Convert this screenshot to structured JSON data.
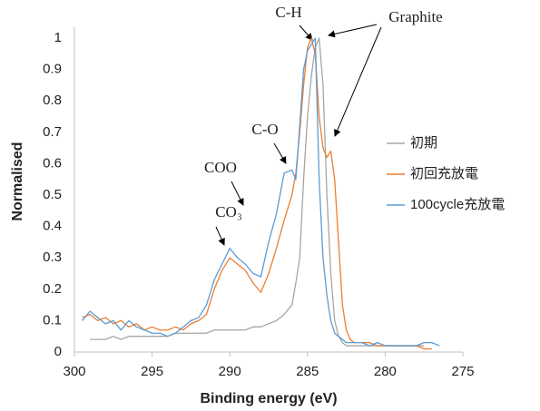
{
  "chart_data": {
    "type": "line",
    "x_label": "Binding energy (eV)",
    "y_label": "Normalised",
    "x": [
      299.5,
      299,
      298.5,
      298,
      297.5,
      297,
      296.5,
      296,
      295.5,
      295,
      294.5,
      294,
      293.5,
      293,
      292.5,
      292,
      291.5,
      291,
      290.5,
      290,
      289.5,
      289,
      288.5,
      288,
      287.5,
      287,
      286.5,
      286,
      285.75,
      285.5,
      285.25,
      285,
      284.75,
      284.5,
      284.25,
      284,
      283.75,
      283.5,
      283.25,
      283,
      282.75,
      282.5,
      282.25,
      282,
      281.5,
      281,
      280.5,
      280,
      279.5,
      279,
      278.5,
      278,
      277.5,
      277,
      276.5
    ],
    "series": [
      {
        "name": "初期",
        "color": "#a5a5a5",
        "values": [
          null,
          0.04,
          0.04,
          0.04,
          0.05,
          0.04,
          0.05,
          0.05,
          0.05,
          0.05,
          0.05,
          0.05,
          0.06,
          0.06,
          0.06,
          0.06,
          0.06,
          0.07,
          0.07,
          0.07,
          0.07,
          0.07,
          0.08,
          0.08,
          0.09,
          0.1,
          0.12,
          0.15,
          0.22,
          0.3,
          0.55,
          0.75,
          0.88,
          0.97,
          1.0,
          0.85,
          0.5,
          0.25,
          0.1,
          0.05,
          0.03,
          0.02,
          0.02,
          0.02,
          0.02,
          0.02,
          0.02,
          0.02,
          0.02,
          0.02,
          0.02,
          0.02,
          0.02,
          null,
          null
        ]
      },
      {
        "name": "初回充放電",
        "color": "#ed7d31",
        "values": [
          0.11,
          0.12,
          0.1,
          0.11,
          0.09,
          0.1,
          0.08,
          0.09,
          0.07,
          0.08,
          0.07,
          0.07,
          0.08,
          0.07,
          0.09,
          0.1,
          0.12,
          0.2,
          0.26,
          0.3,
          0.28,
          0.26,
          0.22,
          0.19,
          0.25,
          0.33,
          0.42,
          0.5,
          0.57,
          0.7,
          0.85,
          0.97,
          1.0,
          0.95,
          0.75,
          0.65,
          0.62,
          0.64,
          0.55,
          0.35,
          0.15,
          0.07,
          0.04,
          0.03,
          0.03,
          0.03,
          0.02,
          0.02,
          0.02,
          0.02,
          0.02,
          0.02,
          0.01,
          0.01,
          null
        ]
      },
      {
        "name": "100cycle充放電",
        "color": "#5b9bd5",
        "values": [
          0.1,
          0.13,
          0.11,
          0.09,
          0.1,
          0.07,
          0.1,
          0.08,
          0.07,
          0.06,
          0.06,
          0.05,
          0.06,
          0.08,
          0.1,
          0.11,
          0.15,
          0.23,
          0.28,
          0.33,
          0.3,
          0.28,
          0.25,
          0.24,
          0.35,
          0.44,
          0.57,
          0.58,
          0.55,
          0.72,
          0.9,
          0.96,
          0.98,
          1.0,
          0.55,
          0.3,
          0.18,
          0.1,
          0.06,
          0.05,
          0.04,
          0.03,
          0.03,
          0.03,
          0.03,
          0.02,
          0.03,
          0.02,
          0.02,
          0.02,
          0.02,
          0.02,
          0.03,
          0.03,
          0.02
        ]
      }
    ],
    "xlim": [
      300,
      275
    ],
    "xticks": [
      300,
      295,
      290,
      285,
      280,
      275
    ],
    "ylim": [
      0,
      1
    ],
    "yticks": [
      0,
      0.1,
      0.2,
      0.3,
      0.4,
      0.5,
      0.6,
      0.7,
      0.8,
      0.9,
      1
    ],
    "grid": false,
    "legend": "right",
    "annotations": [
      "C-H",
      "Graphite",
      "C-O",
      "COO",
      "CO₃"
    ]
  }
}
